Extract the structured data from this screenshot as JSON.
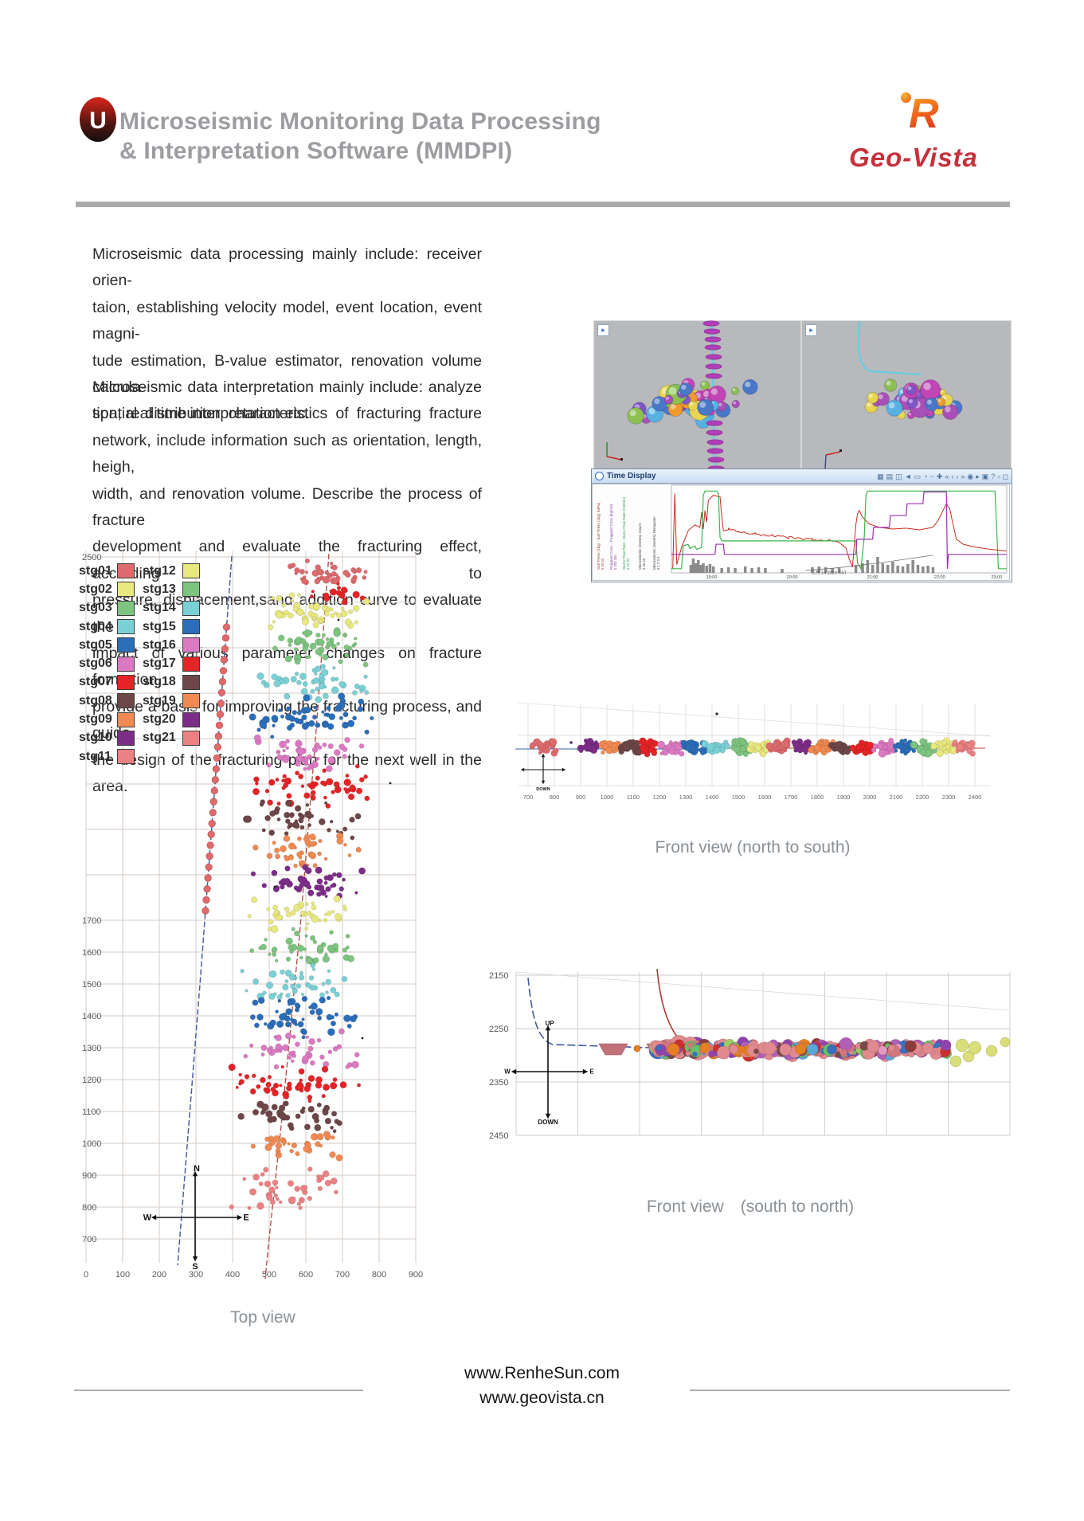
{
  "header": {
    "title_line1": "Microseismic Monitoring Data Processing",
    "title_line2": "& Interpretation Software (MMDPI)",
    "logo_glyph": "U",
    "brand_name": "Geo-Vista",
    "brand_mark_letter": "R",
    "brand_red": "#c5313c",
    "title_gray": "#9b9da0"
  },
  "intro": {
    "paragraph1_lines": [
      "Microseismic data processing mainly include: receiver orien-",
      "taion, establishing velocity model, event location, event magni-",
      "tude estimation, B-value estimator, renovation volume calcula-",
      "tion, real time interpretation etc."
    ],
    "paragraph2_lines": [
      "Microseismic data interpretation mainly include: analyze",
      "spatial distribution characteristics of fracturing fracture",
      "network, include information such as orientation, length, heigh,",
      "width, and renovation volume. Describe the process of fracture",
      "development and evaluate the fracturing effect, according to",
      "pressure, displacement,sand addition curve to evaluate the",
      "impact of various parameter changes on fracture formation,",
      "provide a basis for improving the fracturing process, and guide",
      "the design of the fracturing plan for the next well in the area."
    ]
  },
  "time_display": {
    "title": "Time Display",
    "x_ticks": [
      "19:00",
      "20:00",
      "21:00",
      "22:00",
      "23:00"
    ],
    "x_tick_fx": [
      0.12,
      0.36,
      0.6,
      0.8,
      0.97
    ],
    "date_label": "三月 14 2023 CST",
    "toolbar_icons": [
      "▦",
      "▤",
      "◫",
      "◄",
      "▭",
      "◔",
      "−",
      "✚",
      "«",
      "‹",
      "›",
      "»",
      "◉",
      "▸",
      "▣",
      "?",
      "▫",
      "◻"
    ],
    "axis_labels": [
      {
        "text": "Surf Press (1kg) - Surf Press (1kg) (MPa)",
        "ticks": "0  20  40",
        "color": "#a03a2e"
      },
      {
        "text": "Proppant Conc - Proppant Conc (kg/m3)",
        "ticks": "0  200  400",
        "color": "#8e44ad"
      },
      {
        "text": "Slurry Flow Rate - Slurry Flow Rate (m3/min)",
        "ticks": "0  10  20",
        "color": "#2e9e4f"
      },
      {
        "text": "Microseismic (events) Count",
        "ticks": "0  26  46",
        "color": "#3a3a3a"
      },
      {
        "text": "Microseismic (events) Histogram",
        "ticks": "0 1 2 3 4",
        "color": "#3a3a3a"
      }
    ],
    "colors": {
      "pressure": "#cc2a1e",
      "rate": "#3cb54a",
      "proppant": "#9b30b1",
      "bars": "#8a8a8a",
      "cumulative": "#777777"
    },
    "curves": {
      "pressure": [
        [
          0.004,
          0.97
        ],
        [
          0.01,
          0.08
        ],
        [
          0.016,
          0.92
        ],
        [
          0.03,
          0.72
        ],
        [
          0.05,
          0.52
        ],
        [
          0.07,
          0.45
        ],
        [
          0.085,
          0.48
        ],
        [
          0.09,
          0.3
        ],
        [
          0.095,
          0.5
        ],
        [
          0.1,
          0.28
        ],
        [
          0.105,
          0.42
        ],
        [
          0.11,
          0.16
        ],
        [
          0.125,
          0.1
        ],
        [
          0.145,
          0.12
        ],
        [
          0.15,
          0.35
        ],
        [
          0.155,
          0.52
        ],
        [
          0.17,
          0.5
        ],
        [
          0.2,
          0.53
        ],
        [
          0.25,
          0.56
        ],
        [
          0.3,
          0.58
        ],
        [
          0.35,
          0.6
        ],
        [
          0.42,
          0.62
        ],
        [
          0.48,
          0.64
        ],
        [
          0.5,
          0.66
        ],
        [
          0.52,
          0.72
        ],
        [
          0.53,
          0.85
        ],
        [
          0.54,
          0.95
        ],
        [
          0.545,
          0.7
        ],
        [
          0.55,
          0.45
        ],
        [
          0.555,
          0.32
        ],
        [
          0.56,
          0.28
        ],
        [
          0.57,
          0.36
        ],
        [
          0.59,
          0.44
        ],
        [
          0.62,
          0.48
        ],
        [
          0.66,
          0.5
        ],
        [
          0.7,
          0.49
        ],
        [
          0.74,
          0.51
        ],
        [
          0.78,
          0.48
        ],
        [
          0.795,
          0.4
        ],
        [
          0.81,
          0.28
        ],
        [
          0.82,
          0.2
        ],
        [
          0.83,
          0.26
        ],
        [
          0.84,
          0.45
        ],
        [
          0.85,
          0.62
        ],
        [
          0.87,
          0.68
        ],
        [
          0.9,
          0.71
        ],
        [
          0.95,
          0.74
        ],
        [
          1.0,
          0.76
        ]
      ],
      "rate": [
        [
          0.0,
          0.97
        ],
        [
          0.03,
          0.97
        ],
        [
          0.035,
          0.7
        ],
        [
          0.05,
          0.68
        ],
        [
          0.055,
          0.73
        ],
        [
          0.07,
          0.7
        ],
        [
          0.075,
          0.74
        ],
        [
          0.09,
          0.72
        ],
        [
          0.095,
          0.1
        ],
        [
          0.1,
          0.05
        ],
        [
          0.135,
          0.05
        ],
        [
          0.14,
          0.08
        ],
        [
          0.145,
          0.6
        ],
        [
          0.15,
          0.64
        ],
        [
          0.55,
          0.64
        ],
        [
          0.555,
          0.9
        ],
        [
          0.565,
          0.97
        ],
        [
          0.575,
          0.6
        ],
        [
          0.58,
          0.1
        ],
        [
          0.585,
          0.05
        ],
        [
          0.965,
          0.05
        ],
        [
          0.97,
          0.5
        ],
        [
          0.975,
          0.97
        ],
        [
          1.0,
          0.97
        ]
      ],
      "proppant": [
        [
          0.0,
          0.8
        ],
        [
          0.13,
          0.8
        ],
        [
          0.133,
          0.68
        ],
        [
          0.155,
          0.68
        ],
        [
          0.158,
          0.8
        ],
        [
          0.55,
          0.8
        ],
        [
          0.553,
          0.62
        ],
        [
          0.6,
          0.62
        ],
        [
          0.603,
          0.48
        ],
        [
          0.65,
          0.48
        ],
        [
          0.653,
          0.34
        ],
        [
          0.7,
          0.34
        ],
        [
          0.703,
          0.2
        ],
        [
          0.75,
          0.2
        ],
        [
          0.753,
          0.06
        ],
        [
          0.82,
          0.06
        ],
        [
          0.823,
          0.97
        ],
        [
          0.826,
          0.8
        ],
        [
          1.0,
          0.8
        ]
      ]
    },
    "histogram": [
      [
        0.058,
        0.5
      ],
      [
        0.065,
        0.9
      ],
      [
        0.072,
        0.6
      ],
      [
        0.08,
        0.8
      ],
      [
        0.088,
        0.5
      ],
      [
        0.095,
        0.6
      ],
      [
        0.105,
        0.45
      ],
      [
        0.115,
        0.55
      ],
      [
        0.125,
        0.4
      ],
      [
        0.15,
        0.3
      ],
      [
        0.17,
        0.35
      ],
      [
        0.19,
        0.3
      ],
      [
        0.22,
        0.4
      ],
      [
        0.24,
        0.3
      ],
      [
        0.26,
        0.35
      ],
      [
        0.28,
        0.3
      ],
      [
        0.33,
        0.25
      ],
      [
        0.42,
        0.35
      ],
      [
        0.44,
        0.4
      ],
      [
        0.46,
        0.35
      ],
      [
        0.48,
        0.3
      ],
      [
        0.5,
        0.35
      ],
      [
        0.55,
        0.5
      ],
      [
        0.57,
        0.6
      ],
      [
        0.585,
        0.8
      ],
      [
        0.6,
        0.5
      ],
      [
        0.615,
        1.0
      ],
      [
        0.63,
        0.6
      ],
      [
        0.645,
        0.5
      ],
      [
        0.66,
        0.7
      ],
      [
        0.675,
        0.45
      ],
      [
        0.69,
        0.4
      ],
      [
        0.705,
        0.55
      ],
      [
        0.72,
        0.8
      ],
      [
        0.735,
        0.5
      ],
      [
        0.75,
        0.4
      ],
      [
        0.765,
        0.45
      ],
      [
        0.78,
        0.35
      ]
    ],
    "cumulative": [
      [
        0.4,
        0.99
      ],
      [
        0.48,
        0.965
      ],
      [
        0.56,
        0.93
      ],
      [
        0.64,
        0.89
      ],
      [
        0.71,
        0.85
      ],
      [
        0.78,
        0.81
      ]
    ]
  },
  "palette": [
    "#dd6a6d",
    "#e7e87e",
    "#7cc47f",
    "#79d0d5",
    "#2a6db8",
    "#dc79c3",
    "#e62326",
    "#6d4647",
    "#f08a52",
    "#7b2d88",
    "#ec8183"
  ],
  "top_view": {
    "caption": "Top view",
    "y_ticks": [
      "2500",
      "1700",
      "1600",
      "1500",
      "1400",
      "1300",
      "1200",
      "1100",
      "1000",
      "900",
      "800",
      "700"
    ],
    "x_ticks": [
      "0",
      "100",
      "200",
      "300",
      "400",
      "500",
      "600",
      "700",
      "800",
      "900"
    ],
    "legend_col1": [
      {
        "label": "stg01",
        "color": "#dd6a6d"
      },
      {
        "label": "stg02",
        "color": "#e7e87e"
      },
      {
        "label": "stg03",
        "color": "#7cc47f"
      },
      {
        "label": "stg04",
        "color": "#79d0d5"
      },
      {
        "label": "stg05",
        "color": "#2a6db8"
      },
      {
        "label": "stg06",
        "color": "#dc79c3"
      },
      {
        "label": "stg07",
        "color": "#e62326"
      },
      {
        "label": "stg08",
        "color": "#6d4647"
      },
      {
        "label": "stg09",
        "color": "#f08a52"
      },
      {
        "label": "stg10",
        "color": "#7b2d88"
      },
      {
        "label": "stg11",
        "color": "#ec8183"
      }
    ],
    "legend_col2": [
      {
        "label": "stg12",
        "color": "#e7e87e"
      },
      {
        "label": "stg13",
        "color": "#7cc47f"
      },
      {
        "label": "stg14",
        "color": "#79d0d5"
      },
      {
        "label": "stg15",
        "color": "#2a6db8"
      },
      {
        "label": "stg16",
        "color": "#dc79c3"
      },
      {
        "label": "stg17",
        "color": "#e62326"
      },
      {
        "label": "stg18",
        "color": "#6d4647"
      },
      {
        "label": "stg19",
        "color": "#f08a52"
      },
      {
        "label": "stg20",
        "color": "#7b2d88"
      },
      {
        "label": "stg21",
        "color": "#ec8183"
      }
    ],
    "compass": {
      "n": "N",
      "s": "S",
      "w": "W",
      "e": "E"
    },
    "clusters": [
      [
        0,
        320,
        38,
        62,
        20,
        40
      ],
      [
        6,
        332,
        60,
        48,
        14,
        16
      ],
      [
        1,
        300,
        84,
        72,
        24,
        48
      ],
      [
        2,
        304,
        128,
        76,
        26,
        50
      ],
      [
        3,
        298,
        172,
        78,
        26,
        48
      ],
      [
        4,
        296,
        216,
        90,
        30,
        56
      ],
      [
        5,
        298,
        260,
        80,
        26,
        44
      ],
      [
        6,
        293,
        303,
        84,
        28,
        50
      ],
      [
        7,
        289,
        345,
        82,
        26,
        44
      ],
      [
        8,
        286,
        385,
        76,
        24,
        40
      ],
      [
        9,
        290,
        425,
        82,
        26,
        44
      ],
      [
        1,
        285,
        465,
        76,
        24,
        38
      ],
      [
        2,
        284,
        507,
        78,
        26,
        44
      ],
      [
        3,
        281,
        549,
        76,
        24,
        40
      ],
      [
        4,
        280,
        593,
        88,
        30,
        50
      ],
      [
        5,
        278,
        637,
        82,
        26,
        42
      ],
      [
        6,
        275,
        679,
        82,
        28,
        44
      ],
      [
        7,
        272,
        719,
        76,
        24,
        38
      ],
      [
        8,
        269,
        753,
        70,
        22,
        32
      ],
      [
        10,
        263,
        813,
        76,
        32,
        40
      ]
    ],
    "well_blue": [
      [
        196,
        15
      ],
      [
        178,
        260
      ],
      [
        157,
        540
      ],
      [
        138,
        780
      ],
      [
        128,
        905
      ]
    ],
    "well_red": [
      [
        318,
        12
      ],
      [
        303,
        220
      ],
      [
        282,
        480
      ],
      [
        258,
        730
      ],
      [
        242,
        880
      ],
      [
        238,
        922
      ]
    ]
  },
  "front_view_ns": {
    "caption": "Front view (north to south)",
    "x_ticks": [
      "700",
      "800",
      "900",
      "1000",
      "1100",
      "1200",
      "1300",
      "1400",
      "1500",
      "1600",
      "1700",
      "1800",
      "1900",
      "2000",
      "2100",
      "2200",
      "2300",
      "2400"
    ],
    "down_label": "DOWN",
    "clusters": [
      [
        0,
        38,
        72,
        18,
        9,
        26
      ],
      [
        9,
        95,
        72,
        15,
        9,
        24
      ],
      [
        8,
        121,
        72,
        15,
        9,
        24
      ],
      [
        7,
        147,
        72,
        15,
        9,
        24
      ],
      [
        6,
        173,
        72,
        15,
        9,
        24
      ],
      [
        5,
        199,
        72,
        15,
        9,
        24
      ],
      [
        4,
        225,
        72,
        15,
        9,
        24
      ],
      [
        3,
        255,
        72,
        16,
        9,
        24
      ],
      [
        2,
        283,
        72,
        15,
        9,
        24
      ],
      [
        1,
        309,
        72,
        15,
        9,
        24
      ],
      [
        0,
        335,
        72,
        15,
        9,
        24
      ],
      [
        9,
        361,
        72,
        15,
        9,
        24
      ],
      [
        8,
        387,
        72,
        15,
        9,
        24
      ],
      [
        7,
        413,
        72,
        15,
        9,
        24
      ],
      [
        6,
        439,
        72,
        15,
        9,
        24
      ],
      [
        5,
        465,
        72,
        15,
        9,
        24
      ],
      [
        4,
        491,
        72,
        15,
        9,
        26
      ],
      [
        2,
        517,
        72,
        15,
        9,
        24
      ],
      [
        1,
        541,
        72,
        14,
        9,
        22
      ],
      [
        10,
        565,
        72,
        14,
        9,
        22
      ]
    ]
  },
  "front_view_sn": {
    "caption": "Front view　(south to north)",
    "y_ticks": [
      "2150",
      "2250",
      "2350",
      "2450"
    ],
    "compass": {
      "n": "UP",
      "s": "DOWN",
      "w": "W",
      "e": "E"
    },
    "sphere_colors": [
      [
        "#e08a8f",
        30
      ],
      [
        "#d4767c",
        10
      ],
      [
        "#8e44ad",
        8
      ],
      [
        "#b05fb8",
        6
      ],
      [
        "#e67f22",
        7
      ],
      [
        "#7b4a48",
        6
      ],
      [
        "#cc2f2f",
        6
      ],
      [
        "#3a6fc0",
        6
      ],
      [
        "#5aa7d8",
        4
      ],
      [
        "#6abf69",
        6
      ],
      [
        "#9ccc65",
        3
      ],
      [
        "#e39bc3",
        4
      ],
      [
        "#8e3b3b",
        4
      ]
    ],
    "yellow_spheres": [
      [
        596,
        96,
        8
      ],
      [
        604,
        110,
        7
      ],
      [
        588,
        116,
        7
      ],
      [
        612,
        99,
        8
      ],
      [
        633,
        103,
        7
      ],
      [
        650,
        92,
        6
      ]
    ]
  },
  "panels3d": {
    "sphere_colors": [
      "#7e57c5",
      "#a94fb8",
      "#c245b6",
      "#4a78c9",
      "#57b1e3",
      "#f09a2e",
      "#8cc152",
      "#e8d44d"
    ],
    "disk_color": "#b13db8",
    "cyan": "#63cde2",
    "panel1_disks": [
      [
        147,
        3
      ],
      [
        148,
        13
      ],
      [
        149,
        23
      ],
      [
        149,
        33
      ],
      [
        150,
        45
      ],
      [
        150,
        57
      ],
      [
        150,
        69
      ],
      [
        151,
        128
      ],
      [
        151,
        140
      ],
      [
        152,
        152
      ],
      [
        152,
        163
      ],
      [
        153,
        174
      ],
      [
        153,
        185
      ]
    ],
    "button_glyph": "▸"
  },
  "footer": {
    "line1": "www.RenheSun.com",
    "line2": "www.geovista.cn"
  }
}
